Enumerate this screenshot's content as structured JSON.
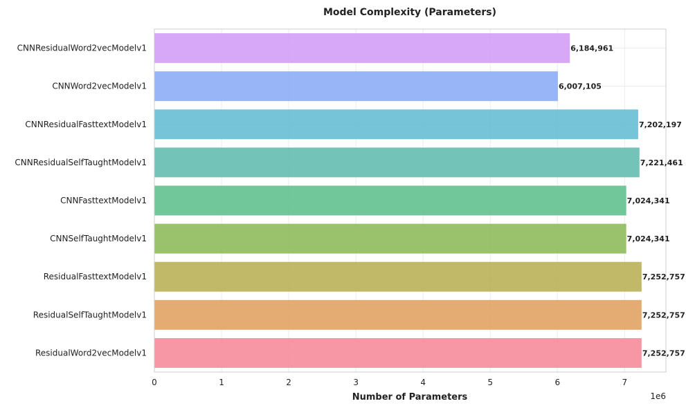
{
  "chart_data": {
    "type": "bar",
    "orientation": "horizontal",
    "title": "Model Complexity (Parameters)",
    "xlabel": "Number of Parameters",
    "ylabel": "",
    "x_scale_note": "1e6",
    "xlim": [
      0,
      7615000
    ],
    "xticks": [
      0,
      1000000,
      2000000,
      3000000,
      4000000,
      5000000,
      6000000,
      7000000
    ],
    "xtick_labels": [
      "0",
      "1",
      "2",
      "3",
      "4",
      "5",
      "6",
      "7"
    ],
    "grid": true,
    "categories": [
      "CNNResidualWord2vecModelv1",
      "CNNWord2vecModelv1",
      "CNNResidualFasttextModelv1",
      "CNNResidualSelfTaughtModelv1",
      "CNNFasttextModelv1",
      "CNNSelfTaughtModelv1",
      "ResidualFasttextModelv1",
      "ResidualSelfTaughtModelv1",
      "ResidualWord2vecModelv1"
    ],
    "values": [
      6184961,
      6007105,
      7202197,
      7221461,
      7024341,
      7024341,
      7252757,
      7252757,
      7252757
    ],
    "value_labels": [
      "6,184,961",
      "6,007,105",
      "7,202,197",
      "7,221,461",
      "7,024,341",
      "7,024,341",
      "7,252,757",
      "7,252,757",
      "7,252,757"
    ],
    "colors": [
      "#d29cf6",
      "#8aacf6",
      "#62bcd1",
      "#61bbaf",
      "#5fbf8c",
      "#8cba58",
      "#b8ae53",
      "#e0a05e",
      "#f6899a"
    ]
  }
}
